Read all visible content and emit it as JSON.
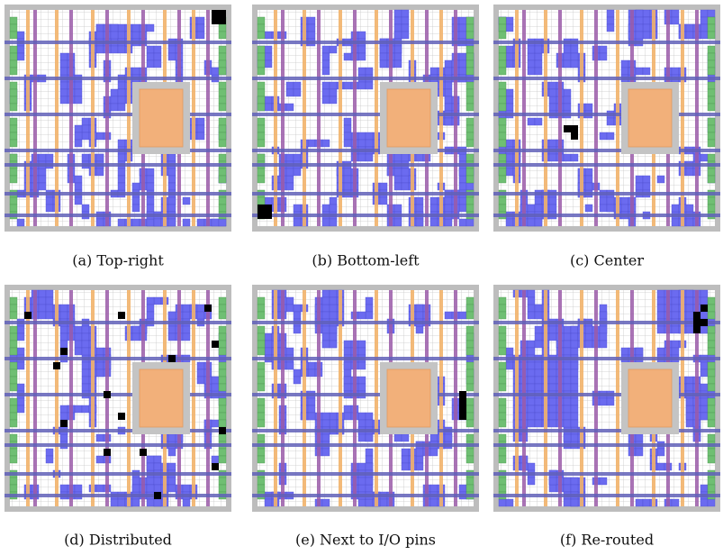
{
  "figure": {
    "panels": [
      {
        "caption": "(a) Top-right"
      },
      {
        "caption": "(b) Bottom-left"
      },
      {
        "caption": "(c) Center"
      },
      {
        "caption": "(d) Distributed"
      },
      {
        "caption": "(e) Next to I/O pins"
      },
      {
        "caption": "(f) Re-routed"
      }
    ]
  }
}
